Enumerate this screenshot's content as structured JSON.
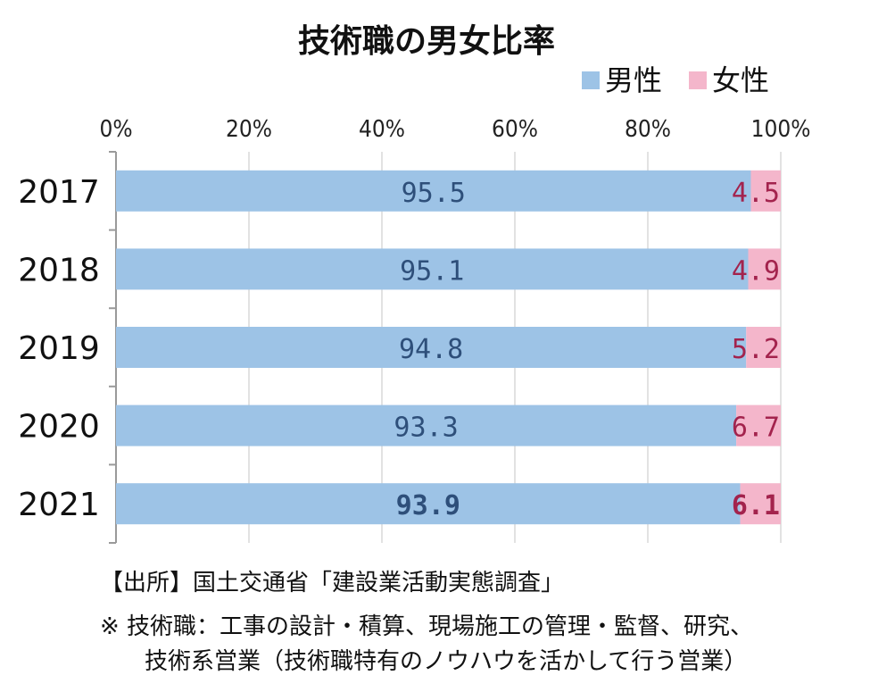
{
  "chart_data": {
    "type": "bar",
    "orientation": "horizontal",
    "stacked": true,
    "title": "技術職の男女比率",
    "categories": [
      "2017",
      "2018",
      "2019",
      "2020",
      "2021"
    ],
    "series": [
      {
        "name": "男性",
        "color": "#9dc3e6",
        "label_color": "#2e4f7a",
        "values": [
          95.5,
          95.1,
          94.8,
          93.3,
          93.9
        ],
        "labels": [
          "95.5",
          "95.1",
          "94.8",
          "93.3",
          "93.9"
        ]
      },
      {
        "name": "女性",
        "color": "#f4b6cb",
        "label_color": "#a3234d",
        "values": [
          4.5,
          4.9,
          5.2,
          6.7,
          6.1
        ],
        "labels": [
          "4.5",
          "4.9",
          "5.2",
          "6.7",
          "6.1"
        ]
      }
    ],
    "xlim": [
      0,
      100
    ],
    "x_ticks": [
      0,
      20,
      40,
      60,
      80,
      100
    ],
    "x_tick_labels": [
      "0%",
      "20%",
      "40%",
      "60%",
      "80%",
      "100%"
    ],
    "x_axis_position": "top",
    "grid": true,
    "legend": "top-right",
    "emphasized_category": "2021"
  },
  "footer": {
    "source": "【出所】国土交通省「建設業活動実態調査」",
    "note_line1": "※ 技術職：工事の設計・積算、現場施工の管理・監督、研究、",
    "note_line2": "技術系営業（技術職特有のノウハウを活かして行う営業）"
  }
}
